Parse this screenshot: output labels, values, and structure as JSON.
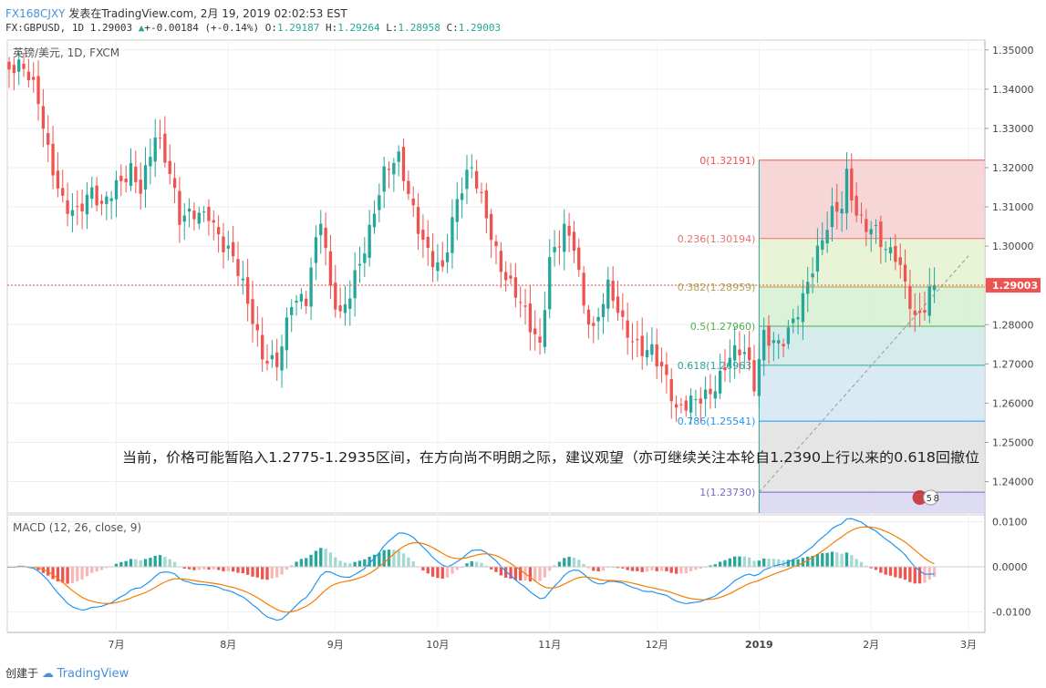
{
  "header": {
    "user": "FX168CJXY",
    "published": "发表在TradingView.com, 2月 19, 2019 02:02:53 EST",
    "symbol": "FX:GBPUSD, 1D",
    "last": "1.29003",
    "change": "+-0.00184 (+-0.14%)",
    "open_label": "O:",
    "open": "1.29187",
    "high_label": "H:",
    "high": "1.29264",
    "low_label": "L:",
    "low": "1.28958",
    "close_label": "C:",
    "close": "1.29003"
  },
  "footer": {
    "created_by": "创建于",
    "brand": "TradingView"
  },
  "colors": {
    "up": "#26a69a",
    "down": "#ef5350",
    "macd": "#2196f3",
    "signal": "#f57c00"
  },
  "chart_data": [
    {
      "type": "candlestick",
      "title": "英镑/美元, 1D, FXCM",
      "yticks": [
        "1.35000",
        "1.34000",
        "1.33000",
        "1.32000",
        "1.31000",
        "1.30000",
        "1.29000",
        "1.28000",
        "1.27000",
        "1.26000",
        "1.25000",
        "1.24000"
      ],
      "ylim": [
        1.232,
        1.3525
      ],
      "xticks": [
        {
          "label": "7月",
          "i": 22
        },
        {
          "label": "8月",
          "i": 45
        },
        {
          "label": "9月",
          "i": 67
        },
        {
          "label": "10月",
          "i": 88
        },
        {
          "label": "11月",
          "i": 111
        },
        {
          "label": "12月",
          "i": 133
        },
        {
          "label": "2019",
          "i": 154
        },
        {
          "label": "2月",
          "i": 177
        },
        {
          "label": "3月",
          "i": 197
        }
      ],
      "current_price_label": "1.29003",
      "current_price": 1.29003,
      "key_prices": [
        [
          0,
          1.345
        ],
        [
          3,
          1.342
        ],
        [
          6,
          1.335
        ],
        [
          8,
          1.325
        ],
        [
          11,
          1.315
        ],
        [
          14,
          1.31
        ],
        [
          17,
          1.311
        ],
        [
          19,
          1.306
        ],
        [
          22,
          1.315
        ],
        [
          25,
          1.323
        ],
        [
          27,
          1.318
        ],
        [
          30,
          1.328
        ],
        [
          33,
          1.315
        ],
        [
          35,
          1.304
        ],
        [
          38,
          1.31
        ],
        [
          41,
          1.312
        ],
        [
          44,
          1.301
        ],
        [
          46,
          1.295
        ],
        [
          49,
          1.282
        ],
        [
          52,
          1.272
        ],
        [
          55,
          1.274
        ],
        [
          58,
          1.288
        ],
        [
          61,
          1.284
        ],
        [
          64,
          1.304
        ],
        [
          66,
          1.288
        ],
        [
          68,
          1.284
        ],
        [
          71,
          1.296
        ],
        [
          74,
          1.304
        ],
        [
          77,
          1.315
        ],
        [
          80,
          1.32
        ],
        [
          83,
          1.311
        ],
        [
          86,
          1.302
        ],
        [
          89,
          1.294
        ],
        [
          92,
          1.308
        ],
        [
          95,
          1.318
        ],
        [
          98,
          1.31
        ],
        [
          101,
          1.298
        ],
        [
          104,
          1.288
        ],
        [
          107,
          1.276
        ],
        [
          109,
          1.271
        ],
        [
          111,
          1.296
        ],
        [
          114,
          1.308
        ],
        [
          116,
          1.304
        ],
        [
          118,
          1.286
        ],
        [
          120,
          1.276
        ],
        [
          123,
          1.286
        ],
        [
          126,
          1.28
        ],
        [
          129,
          1.278
        ],
        [
          132,
          1.276
        ],
        [
          135,
          1.264
        ],
        [
          137,
          1.254
        ],
        [
          139,
          1.257
        ],
        [
          142,
          1.263
        ],
        [
          145,
          1.268
        ],
        [
          148,
          1.273
        ],
        [
          151,
          1.27
        ],
        [
          153,
          1.261
        ],
        [
          155,
          1.276
        ],
        [
          158,
          1.278
        ],
        [
          161,
          1.284
        ],
        [
          163,
          1.287
        ],
        [
          165,
          1.292
        ],
        [
          167,
          1.298
        ],
        [
          169,
          1.306
        ],
        [
          171,
          1.311
        ],
        [
          172,
          1.32
        ],
        [
          174,
          1.312
        ],
        [
          176,
          1.308
        ],
        [
          178,
          1.304
        ],
        [
          180,
          1.296
        ],
        [
          182,
          1.294
        ],
        [
          184,
          1.288
        ],
        [
          186,
          1.282
        ],
        [
          188,
          1.288
        ],
        [
          189,
          1.292
        ],
        [
          190,
          1.29
        ]
      ],
      "fib_levels": [
        {
          "label": "0(1.32191)",
          "value": 1.32191,
          "color": "#ef5350",
          "fill": "#f4cfd0"
        },
        {
          "label": "0.236(1.30194)",
          "value": 1.30194,
          "color": "#e57373",
          "fill": "#e5f2cf"
        },
        {
          "label": "0.382(1.28959)",
          "value": 1.28959,
          "color": "#a7a750",
          "fill": "#d5f0d2"
        },
        {
          "label": "0.5(1.27960)",
          "value": 1.2796,
          "color": "#4caf50",
          "fill": "#cfe9e6"
        },
        {
          "label": "0.618(1.26963)",
          "value": 1.26963,
          "color": "#26a69a",
          "fill": "#d3e6f3"
        },
        {
          "label": "0.786(1.25541)",
          "value": 1.25541,
          "color": "#2196f3",
          "fill": "#e0e0e0"
        },
        {
          "label": "1(1.23730)",
          "value": 1.2373,
          "color": "#7b68c9",
          "fill": "#d8d5f2"
        }
      ],
      "fib_trend": {
        "from": [
          154,
          1.2373
        ],
        "to": [
          197,
          1.2975
        ]
      },
      "annotation": "当前，价格可能暂陷入1.2775-1.2935区间，在方向尚不明朗之际，建议观望（亦可继续关注本轮自1.2390上行以来的0.618回撤位"
    },
    {
      "type": "macd",
      "title": "MACD (12, 26, close, 9)",
      "yticks": [
        "0.0100",
        "0.0000",
        "-0.0100"
      ],
      "ylim": [
        -0.0145,
        0.0115
      ],
      "badge": [
        "5",
        "8"
      ]
    }
  ]
}
